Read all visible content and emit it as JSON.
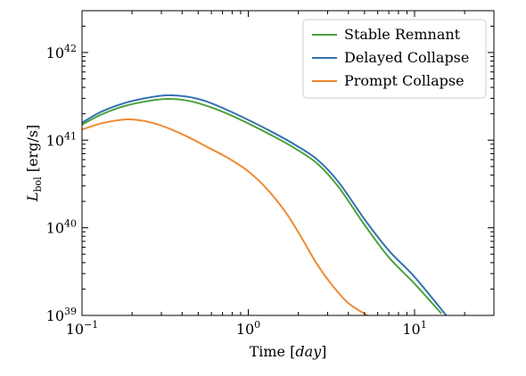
{
  "chart_data": {
    "type": "line",
    "title": "",
    "xlabel": "Time [day]",
    "ylabel": "L_bol [erg/s]",
    "xscale": "log",
    "yscale": "log",
    "xlim": [
      0.1,
      30
    ],
    "ylim": [
      1e+39,
      3e+42
    ],
    "x_ticks": [
      {
        "value": 0.1,
        "base": "10",
        "exp": "−1"
      },
      {
        "value": 1,
        "base": "10",
        "exp": "0"
      },
      {
        "value": 10,
        "base": "10",
        "exp": "1"
      }
    ],
    "y_ticks": [
      {
        "value": 1e+39,
        "base": "10",
        "exp": "39"
      },
      {
        "value": 1e+40,
        "base": "10",
        "exp": "40"
      },
      {
        "value": 1e+41,
        "base": "10",
        "exp": "41"
      },
      {
        "value": 1e+42,
        "base": "10",
        "exp": "42"
      }
    ],
    "grid": false,
    "legend_position": "top-right",
    "series": [
      {
        "name": "Stable Remnant",
        "color": "#4ca13c",
        "x": [
          0.1,
          0.13,
          0.18,
          0.25,
          0.32,
          0.42,
          0.55,
          0.75,
          1.0,
          1.4,
          1.9,
          2.6,
          3.5,
          5.0,
          7.0,
          10.0,
          14.5
        ],
        "y": [
          1.5e+41,
          1.95e+41,
          2.45e+41,
          2.8e+41,
          2.95e+41,
          2.85e+41,
          2.5e+41,
          2e+41,
          1.55e+41,
          1.12e+41,
          8.1e+40,
          5.4e+40,
          2.9e+40,
          1.08e+40,
          4.6e+39,
          2.3e+39,
          1.05e+39
        ]
      },
      {
        "name": "Delayed Collapse",
        "color": "#3572b0",
        "x": [
          0.1,
          0.13,
          0.18,
          0.25,
          0.32,
          0.42,
          0.55,
          0.75,
          1.0,
          1.4,
          1.9,
          2.6,
          3.5,
          5.0,
          7.0,
          10.0,
          15.5
        ],
        "y": [
          1.58e+41,
          2.1e+41,
          2.65e+41,
          3.05e+41,
          3.25e+41,
          3.15e+41,
          2.8e+41,
          2.2e+41,
          1.7e+41,
          1.23e+41,
          8.9e+40,
          6e+40,
          3.3e+40,
          1.25e+40,
          5.5e+39,
          2.75e+39,
          1e+39
        ]
      },
      {
        "name": "Prompt Collapse",
        "color": "#ee8a33",
        "x": [
          0.1,
          0.13,
          0.17,
          0.2,
          0.25,
          0.32,
          0.42,
          0.55,
          0.75,
          1.0,
          1.3,
          1.7,
          2.1,
          2.6,
          3.2,
          4.0,
          5.2
        ],
        "y": [
          1.32e+41,
          1.55e+41,
          1.7e+41,
          1.72e+41,
          1.62e+41,
          1.4e+41,
          1.12e+41,
          8.6e+40,
          6.3e+40,
          4.4e+40,
          2.75e+40,
          1.45e+40,
          7.6e+39,
          3.8e+39,
          2.2e+39,
          1.38e+39,
          1e+39
        ]
      }
    ]
  }
}
